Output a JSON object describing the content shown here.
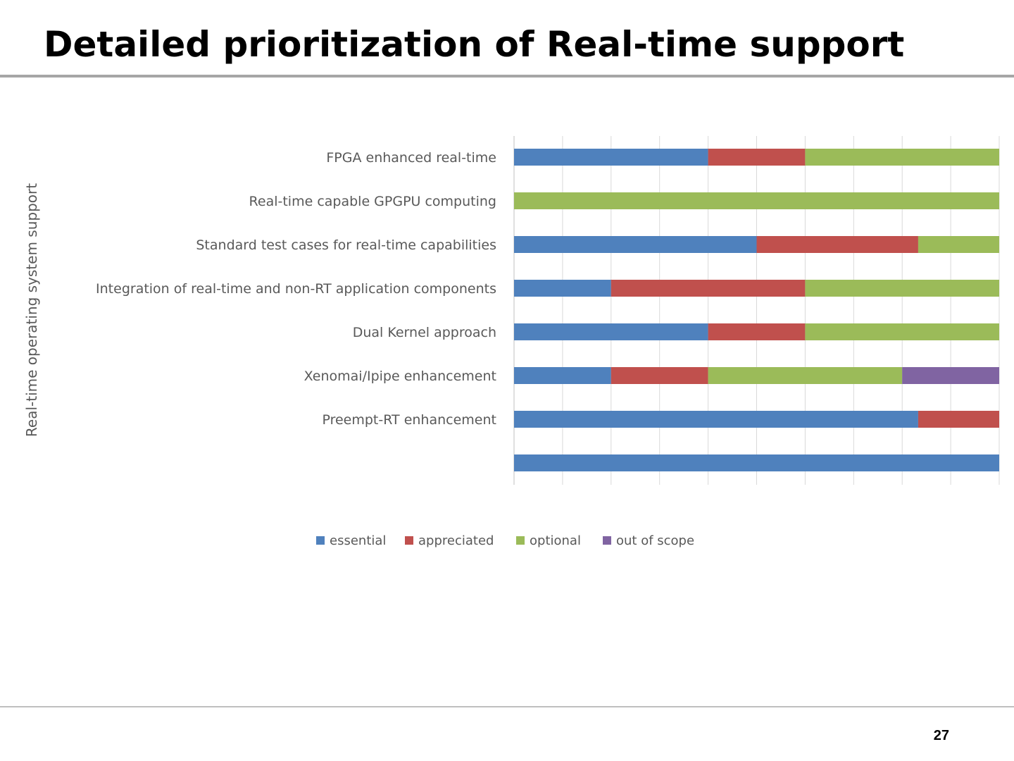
{
  "slide": {
    "title": "Detailed prioritization of Real-time support",
    "page_number": "27"
  },
  "chart_data": {
    "type": "bar",
    "orientation": "horizontal",
    "stacked": true,
    "group_label": "Real-time operating system support",
    "categories": [
      "FPGA enhanced real-time",
      "Real-time capable GPGPU computing",
      "Standard test cases for real-time capabilities",
      "Integration of real-time and non-RT application components",
      "Dual Kernel approach",
      "Xenomai/Ipipe enhancement",
      "Preempt-RT enhancement",
      ""
    ],
    "series": [
      {
        "name": "essential",
        "color": "#4f81bd",
        "values": [
          40,
          0,
          50,
          20,
          40,
          20,
          83.3,
          100
        ]
      },
      {
        "name": "appreciated",
        "color": "#c0504d",
        "values": [
          20,
          0,
          33.3,
          40,
          20,
          20,
          16.7,
          0
        ]
      },
      {
        "name": "optional",
        "color": "#9bbb59",
        "values": [
          40,
          100,
          16.7,
          40,
          40,
          40,
          0,
          0
        ]
      },
      {
        "name": "out of scope",
        "color": "#8064a2",
        "values": [
          0,
          0,
          0,
          0,
          0,
          20,
          0,
          0
        ]
      }
    ],
    "xlim": [
      0,
      100
    ],
    "x_tick_labels_shown": false,
    "grid": true,
    "legend_position": "bottom"
  }
}
